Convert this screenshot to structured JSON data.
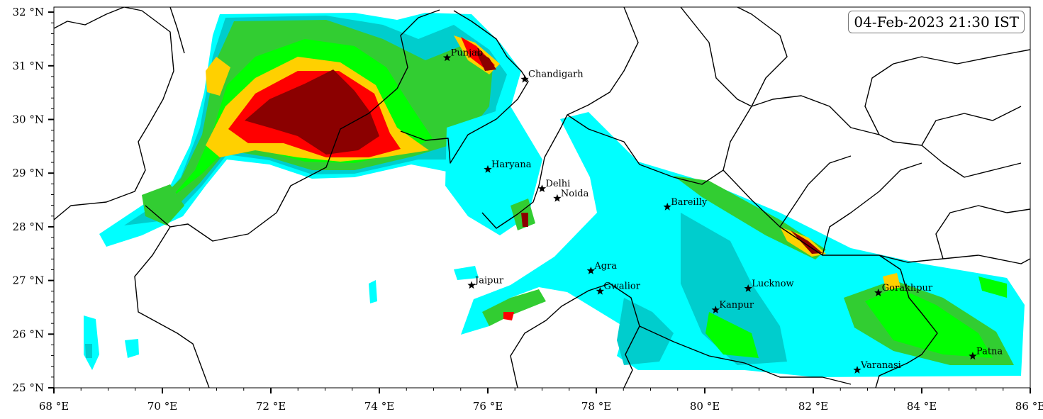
{
  "timestamp": "04-Feb-2023 21:30 IST",
  "axes": {
    "lon_ticks": [
      68,
      70,
      72,
      74,
      76,
      78,
      80,
      82,
      84,
      86
    ],
    "lat_ticks": [
      25,
      26,
      27,
      28,
      29,
      30,
      31,
      32
    ],
    "lon_label_suffix": " °E",
    "lat_label_suffix": " °N",
    "lon_range": [
      68,
      86.0
    ],
    "lat_range": [
      25,
      32.1
    ]
  },
  "colors": {
    "level1": "#00ffff",
    "level2": "#00cdcd",
    "level3": "#00ff00",
    "level4": "#32cd32",
    "level5": "#ffd000",
    "level6": "#ff0000",
    "level7": "#8b0000",
    "border": "#000000"
  },
  "cities": [
    {
      "name": "Punjab",
      "lon": 75.25,
      "lat": 31.15
    },
    {
      "name": "Chandigarh",
      "lon": 76.68,
      "lat": 30.75
    },
    {
      "name": "Haryana",
      "lon": 76.0,
      "lat": 29.07
    },
    {
      "name": "Delhi",
      "lon": 77.0,
      "lat": 28.71
    },
    {
      "name": "Noida",
      "lon": 77.28,
      "lat": 28.53
    },
    {
      "name": "Bareilly",
      "lon": 79.31,
      "lat": 28.37
    },
    {
      "name": "Agra",
      "lon": 77.9,
      "lat": 27.18
    },
    {
      "name": "Jaipur",
      "lon": 75.7,
      "lat": 26.91
    },
    {
      "name": "Gwalior",
      "lon": 78.07,
      "lat": 26.8
    },
    {
      "name": "Lucknow",
      "lon": 80.8,
      "lat": 26.85
    },
    {
      "name": "Kanpur",
      "lon": 80.2,
      "lat": 26.45
    },
    {
      "name": "Gorakhpur",
      "lon": 83.2,
      "lat": 26.77
    },
    {
      "name": "Varanasi",
      "lon": 82.81,
      "lat": 25.33
    },
    {
      "name": "Patna",
      "lon": 84.94,
      "lat": 25.59
    }
  ]
}
